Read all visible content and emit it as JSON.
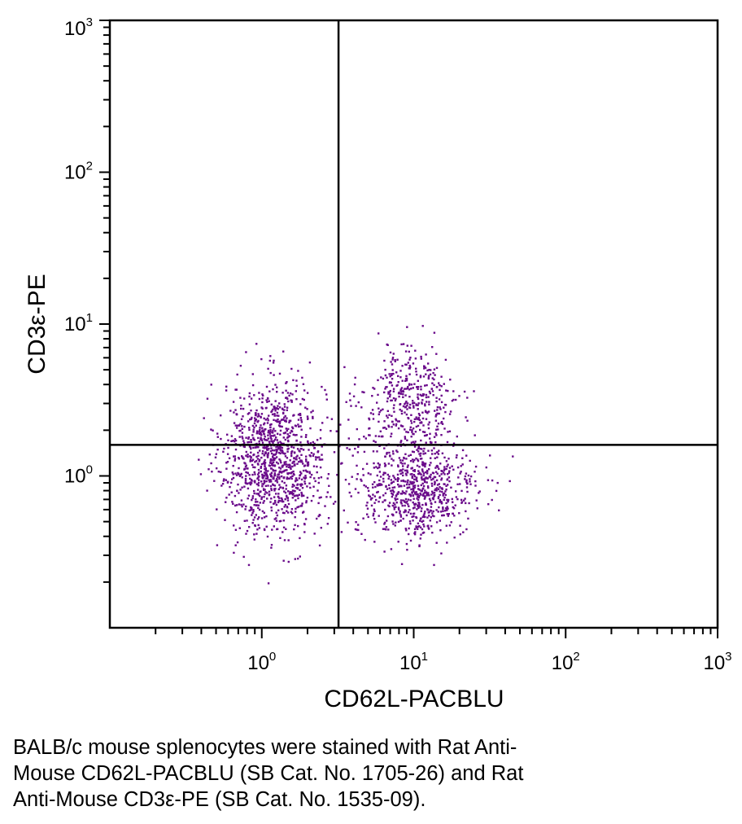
{
  "chart_data": {
    "type": "scatter",
    "xlabel": "CD62L-PACBLU",
    "ylabel": "CD3ε-PE",
    "x_scale": "log",
    "y_scale": "log",
    "xlim": [
      0.1,
      1000
    ],
    "ylim": [
      0.1,
      1000
    ],
    "x_ticks": [
      {
        "base": "10",
        "exp": "0",
        "value": 1
      },
      {
        "base": "10",
        "exp": "1",
        "value": 10
      },
      {
        "base": "10",
        "exp": "2",
        "value": 100
      },
      {
        "base": "10",
        "exp": "3",
        "value": 1000
      }
    ],
    "y_ticks": [
      {
        "base": "10",
        "exp": "0",
        "value": 1
      },
      {
        "base": "10",
        "exp": "1",
        "value": 10
      },
      {
        "base": "10",
        "exp": "2",
        "value": 100
      },
      {
        "base": "10",
        "exp": "3",
        "value": 1000
      }
    ],
    "quadrant_gates": {
      "x": 3.2,
      "y": 1.6
    },
    "point_color": "#6a0a8a",
    "populations": [
      {
        "center": [
          1.2,
          1.3
        ],
        "spread_log10": [
          0.17,
          0.25
        ],
        "count": 1150
      },
      {
        "center": [
          10.5,
          0.8
        ],
        "spread_log10": [
          0.2,
          0.16
        ],
        "count": 750
      },
      {
        "center": [
          9.5,
          3.0
        ],
        "spread_log10": [
          0.16,
          0.18
        ],
        "count": 420
      }
    ]
  },
  "caption": {
    "lines": [
      "BALB/c mouse splenocytes were stained with Rat Anti-",
      "Mouse CD62L-PACBLU (SB Cat. No. 1705-26) and Rat",
      "Anti-Mouse CD3ε-PE (SB Cat. No. 1535-09)."
    ]
  }
}
